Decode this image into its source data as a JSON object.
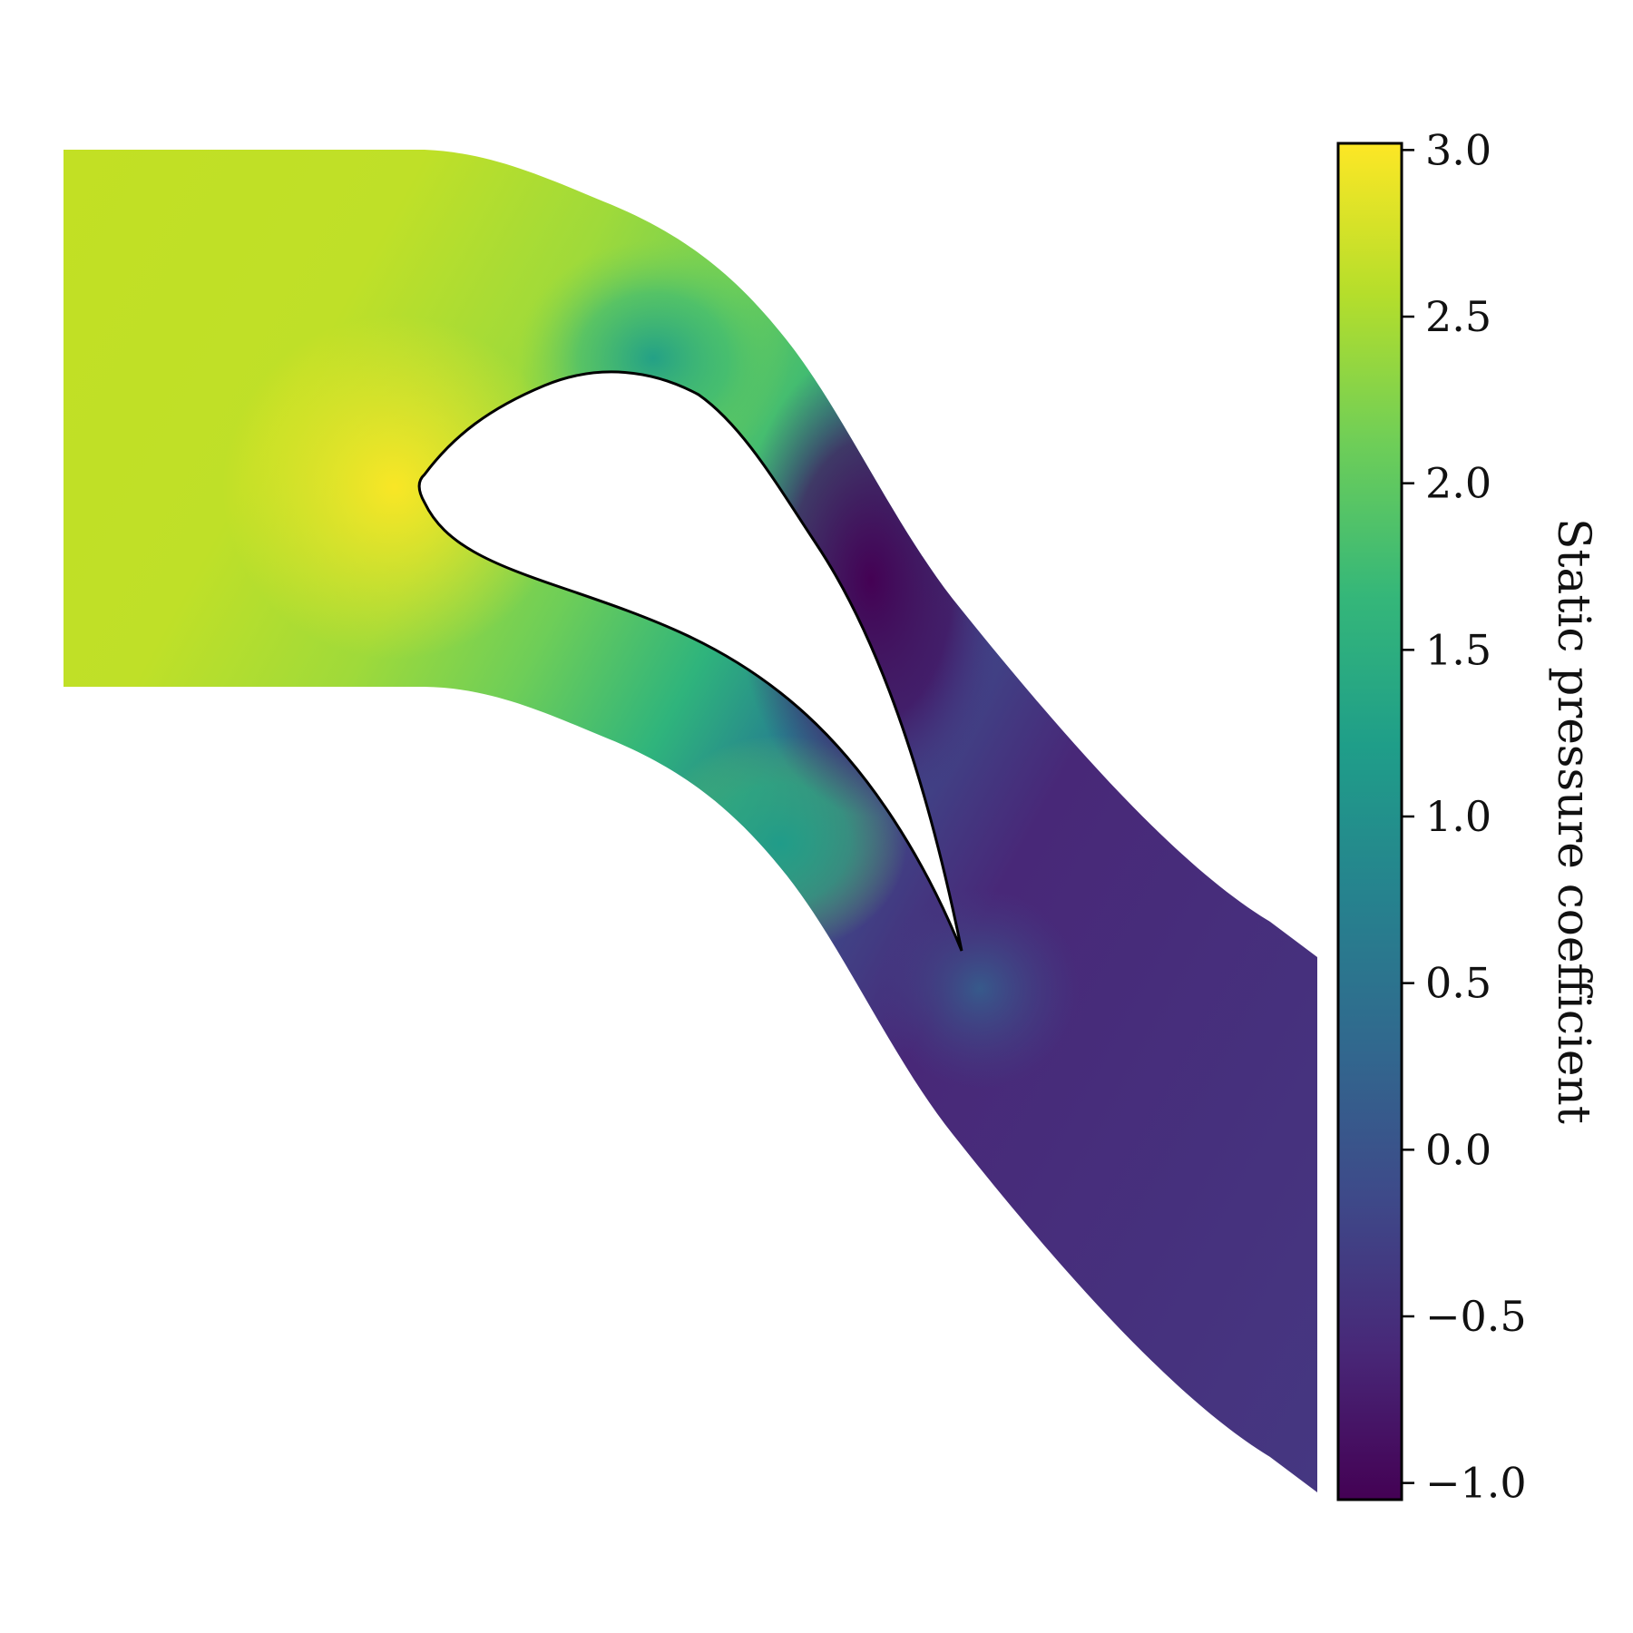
{
  "chart_data": {
    "type": "heatmap",
    "title": "",
    "description_kind": "2D static pressure contour around a turbine blade passage",
    "colormap": "viridis",
    "colormap_stops": [
      "#440154",
      "#482878",
      "#3e4989",
      "#31688e",
      "#26828e",
      "#1f9e89",
      "#35b779",
      "#6ece58",
      "#b5de2b",
      "#fde725"
    ],
    "colorbar": {
      "label": "Static pressure coefficient",
      "range": [
        -1.05,
        3.02
      ],
      "ticks": [
        3.0,
        2.5,
        2.0,
        1.5,
        1.0,
        0.5,
        0.0,
        -0.5,
        -1.0
      ],
      "tick_labels": [
        "3.0",
        "2.5",
        "2.0",
        "1.5",
        "1.0",
        "0.5",
        "0.0",
        "−0.5",
        "−1.0"
      ],
      "orientation": "vertical",
      "placement": "right"
    },
    "field_samples": [
      {
        "region": "inlet",
        "value": 2.6
      },
      {
        "region": "stagnation point (leading edge)",
        "value": 2.9
      },
      {
        "region": "suction side peak",
        "value": -1.0
      },
      {
        "region": "pressure side mid",
        "value": 2.3
      },
      {
        "region": "throat",
        "value": 1.4
      },
      {
        "region": "trailing edge",
        "value": 0.0
      },
      {
        "region": "outlet",
        "value": -0.4
      }
    ],
    "grid": false,
    "axes_visible": false
  }
}
